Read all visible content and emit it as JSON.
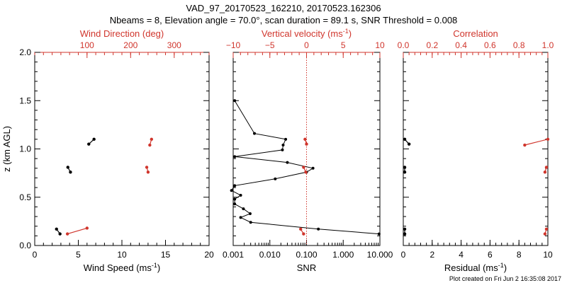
{
  "figure": {
    "title_line1": "VAD_97_20170523_162210, 20170523.162306",
    "title_line2": "Nbeams = 8, Elevation angle = 70.0°, scan duration = 89.1 s, SNR Threshold = 0.008",
    "footer": "Plot created on Fri Jun  2 16:35:08 2017",
    "colors": {
      "primary": "#000000",
      "secondary": "#d0352c"
    }
  },
  "chart_data": [
    {
      "type": "line",
      "panel": "wind",
      "ylabel": "z (km AGL)",
      "ylim": [
        0,
        2.0
      ],
      "yticks": [
        "0.0",
        "0.5",
        "1.0",
        "1.5",
        "2.0"
      ],
      "bottom_axis": {
        "label": "Wind Speed (ms",
        "label_sup": "-1",
        "label_end": ")",
        "range": [
          0,
          20
        ],
        "ticks": [
          "0",
          "5",
          "10",
          "15",
          "20"
        ],
        "color": "#000000"
      },
      "top_axis": {
        "label": "Wind Direction (deg)",
        "range": [
          -20,
          380
        ],
        "ticks": [
          "100",
          "200",
          "300"
        ],
        "color": "#d0352c"
      },
      "series": [
        {
          "axis": "bottom",
          "color": "#000000",
          "segments": [
            {
              "x": [
                6.8,
                6.2
              ],
              "y": [
                1.1,
                1.05
              ]
            },
            {
              "x": [
                3.8,
                4.1
              ],
              "y": [
                0.81,
                0.76
              ]
            },
            {
              "x": [
                2.5,
                2.9
              ],
              "y": [
                0.17,
                0.12
              ]
            }
          ]
        },
        {
          "axis": "top",
          "color": "#d0352c",
          "segments": [
            {
              "x": [
                248,
                244
              ],
              "y": [
                1.1,
                1.04
              ]
            },
            {
              "x": [
                237,
                240
              ],
              "y": [
                0.81,
                0.76
              ]
            },
            {
              "x": [
                100,
                55
              ],
              "y": [
                0.18,
                0.12
              ]
            }
          ]
        }
      ]
    },
    {
      "type": "line",
      "panel": "snr",
      "ylim": [
        0,
        2.0
      ],
      "bottom_axis": {
        "label": "SNR",
        "scale": "log",
        "range": [
          0.001,
          10
        ],
        "ticks": [
          "0.001",
          "0.010",
          "0.100",
          "1.000",
          "10.000"
        ],
        "tick_values": [
          0.001,
          0.01,
          0.1,
          1,
          10
        ],
        "color": "#000000"
      },
      "top_axis": {
        "label": "Vertical velocity (ms",
        "label_sup": "-1",
        "label_end": ")",
        "range": [
          -10,
          10
        ],
        "ticks": [
          "−10",
          "−5",
          "0",
          "5",
          "10"
        ],
        "color": "#d0352c",
        "zero_line": 0
      },
      "series": [
        {
          "name": "SNR",
          "axis": "bottom",
          "color": "#000000",
          "points": [
            {
              "x": 0.0011,
              "y": 1.5
            },
            {
              "x": 0.0038,
              "y": 1.16
            },
            {
              "x": 0.027,
              "y": 1.1
            },
            {
              "x": 0.023,
              "y": 1.04
            },
            {
              "x": 0.022,
              "y": 0.99
            },
            {
              "x": 0.0011,
              "y": 0.92
            },
            {
              "x": 0.03,
              "y": 0.86
            },
            {
              "x": 0.15,
              "y": 0.8
            },
            {
              "x": 0.1,
              "y": 0.76
            },
            {
              "x": 0.014,
              "y": 0.69
            },
            {
              "x": 0.0011,
              "y": 0.62
            },
            {
              "x": 0.0009,
              "y": 0.57
            },
            {
              "x": 0.0016,
              "y": 0.52
            },
            {
              "x": 0.0011,
              "y": 0.48
            },
            {
              "x": 0.0011,
              "y": 0.43
            },
            {
              "x": 0.0019,
              "y": 0.38
            },
            {
              "x": 0.0029,
              "y": 0.33
            },
            {
              "x": 0.0016,
              "y": 0.29
            },
            {
              "x": 0.003,
              "y": 0.24
            },
            {
              "x": 0.21,
              "y": 0.17
            },
            {
              "x": 9.5,
              "y": 0.12
            }
          ]
        },
        {
          "name": "Vertical velocity",
          "axis": "top",
          "color": "#d0352c",
          "segments": [
            {
              "x": [
                -0.2,
                0.0
              ],
              "y": [
                1.1,
                1.05
              ]
            },
            {
              "x": [
                -0.4,
                -0.1
              ],
              "y": [
                0.81,
                0.76
              ]
            },
            {
              "x": [
                -0.8,
                -0.4
              ],
              "y": [
                0.17,
                0.12
              ]
            }
          ]
        }
      ]
    },
    {
      "type": "line",
      "panel": "residual",
      "ylim": [
        0,
        2.0
      ],
      "bottom_axis": {
        "label": "Residual (ms",
        "label_sup": "-1",
        "label_end": ")",
        "range": [
          0,
          10
        ],
        "ticks": [
          "0",
          "2",
          "4",
          "6",
          "8",
          "10"
        ],
        "color": "#000000"
      },
      "top_axis": {
        "label": "Correlation",
        "range": [
          0,
          1.0
        ],
        "ticks": [
          "0.0",
          "0.2",
          "0.4",
          "0.6",
          "0.8",
          "1.0"
        ],
        "color": "#d0352c"
      },
      "series": [
        {
          "name": "Residual",
          "axis": "bottom",
          "color": "#000000",
          "segments": [
            {
              "x": [
                0.1,
                0.4
              ],
              "y": [
                1.1,
                1.05
              ]
            },
            {
              "x": [
                0.1,
                0.1
              ],
              "y": [
                0.81,
                0.76
              ]
            },
            {
              "x": [
                0.1,
                0.1
              ],
              "y": [
                0.17,
                0.12
              ]
            }
          ]
        },
        {
          "name": "Correlation",
          "axis": "top",
          "color": "#d0352c",
          "segments": [
            {
              "x": [
                1.0,
                0.84
              ],
              "y": [
                1.1,
                1.04
              ]
            },
            {
              "x": [
                0.99,
                0.98
              ],
              "y": [
                0.81,
                0.76
              ]
            },
            {
              "x": [
                0.99,
                0.98
              ],
              "y": [
                0.17,
                0.12
              ]
            }
          ]
        }
      ]
    }
  ]
}
